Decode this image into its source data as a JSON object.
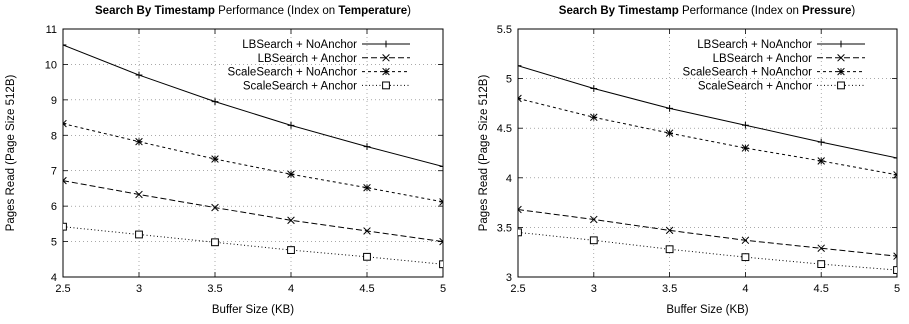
{
  "chart_data": [
    {
      "type": "line",
      "title_parts": [
        {
          "text": "Search By Timestamp",
          "bold": true
        },
        {
          "text": " Performance (Index on ",
          "bold": false
        },
        {
          "text": "Temperature",
          "bold": true
        },
        {
          "text": ")",
          "bold": false
        }
      ],
      "xlabel": "Buffer Size (KB)",
      "ylabel": "Pages Read (Page Size 512B)",
      "xlim": [
        2.5,
        5
      ],
      "ylim": [
        4,
        11
      ],
      "xticks": [
        "2.5",
        "3",
        "3.5",
        "4",
        "4.5",
        "5"
      ],
      "yticks": [
        "4",
        "5",
        "6",
        "7",
        "8",
        "9",
        "10",
        "11"
      ],
      "grid": true,
      "legend_position": "top-right",
      "x": [
        2.5,
        3,
        3.5,
        4,
        4.5,
        5
      ],
      "series": [
        {
          "name": "LBSearch + NoAnchor",
          "marker": "plus",
          "dash": "solid",
          "values": [
            10.55,
            9.7,
            8.95,
            8.28,
            7.68,
            7.12
          ]
        },
        {
          "name": "LBSearch + Anchor",
          "marker": "cross",
          "dash": "dash",
          "values": [
            6.72,
            6.33,
            5.96,
            5.6,
            5.3,
            5.0
          ]
        },
        {
          "name": "ScaleSearch + NoAnchor",
          "marker": "star",
          "dash": "shortdash",
          "values": [
            8.33,
            7.82,
            7.33,
            6.9,
            6.52,
            6.12
          ]
        },
        {
          "name": "ScaleSearch + Anchor",
          "marker": "square",
          "dash": "dot",
          "values": [
            5.42,
            5.2,
            4.98,
            4.76,
            4.57,
            4.36
          ]
        }
      ]
    },
    {
      "type": "line",
      "title_parts": [
        {
          "text": "Search By Timestamp",
          "bold": true
        },
        {
          "text": " Performance (Index on ",
          "bold": false
        },
        {
          "text": "Pressure",
          "bold": true
        },
        {
          "text": ")",
          "bold": false
        }
      ],
      "xlabel": "Buffer Size (KB)",
      "ylabel": "Pages Read (Page Size 512B)",
      "xlim": [
        2.5,
        5
      ],
      "ylim": [
        3,
        5.5
      ],
      "xticks": [
        "2.5",
        "3",
        "3.5",
        "4",
        "4.5",
        "5"
      ],
      "yticks": [
        "3",
        "3.5",
        "4",
        "4.5",
        "5",
        "5.5"
      ],
      "grid": true,
      "legend_position": "top-right",
      "x": [
        2.5,
        3,
        3.5,
        4,
        4.5,
        5
      ],
      "series": [
        {
          "name": "LBSearch + NoAnchor",
          "marker": "plus",
          "dash": "solid",
          "values": [
            5.13,
            4.9,
            4.7,
            4.53,
            4.36,
            4.2
          ]
        },
        {
          "name": "LBSearch + Anchor",
          "marker": "cross",
          "dash": "dash",
          "values": [
            3.68,
            3.58,
            3.47,
            3.37,
            3.29,
            3.21
          ]
        },
        {
          "name": "ScaleSearch + NoAnchor",
          "marker": "star",
          "dash": "shortdash",
          "values": [
            4.8,
            4.61,
            4.45,
            4.3,
            4.17,
            4.03
          ]
        },
        {
          "name": "ScaleSearch + Anchor",
          "marker": "square",
          "dash": "dot",
          "values": [
            3.45,
            3.37,
            3.28,
            3.2,
            3.13,
            3.07
          ]
        }
      ]
    }
  ]
}
